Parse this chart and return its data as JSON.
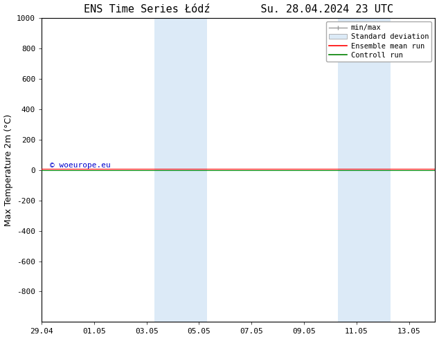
{
  "title": "ENS Time Series Łódź        Su. 28.04.2024 23 UTC",
  "ylabel": "Max Temperature 2m (°C)",
  "xlabel": "",
  "ylim_top": -1000,
  "ylim_bottom": 1000,
  "yticks": [
    -800,
    -600,
    -400,
    -200,
    0,
    200,
    400,
    600,
    800,
    1000
  ],
  "xtick_labels": [
    "29.04",
    "01.05",
    "03.05",
    "05.05",
    "07.05",
    "09.05",
    "11.05",
    "13.05"
  ],
  "xtick_positions": [
    0,
    2,
    4,
    6,
    8,
    10,
    12,
    14
  ],
  "xlim": [
    0,
    15
  ],
  "shaded_bands": [
    {
      "x_start": 4.3,
      "x_end": 6.3
    },
    {
      "x_start": 11.3,
      "x_end": 13.3
    }
  ],
  "hline_y": 0,
  "ensemble_mean_color": "#ff0000",
  "control_run_color": "#008000",
  "minmax_color": "#999999",
  "std_fill_color": "#dceaf7",
  "watermark_text": "© woeurope.eu",
  "watermark_color": "#0000cc",
  "background_color": "#ffffff",
  "legend_entries": [
    "min/max",
    "Standard deviation",
    "Ensemble mean run",
    "Controll run"
  ],
  "title_fontsize": 11,
  "ylabel_fontsize": 9,
  "tick_fontsize": 8,
  "legend_fontsize": 7.5
}
